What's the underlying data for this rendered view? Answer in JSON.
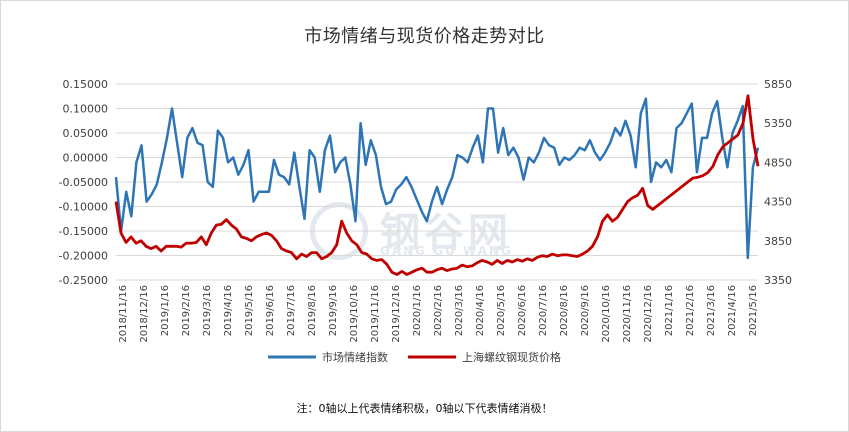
{
  "chart_data": {
    "type": "line",
    "title": "市场情绪与现货价格走势对比",
    "note": "注：0轴以上代表情绪积极，0轴以下代表情绪消极！",
    "watermark": {
      "cn": "钢谷网",
      "en": "GANG GU WANG"
    },
    "x_ticks": [
      "2018/11/16",
      "2018/12/16",
      "2019/1/16",
      "2019/2/16",
      "2019/3/16",
      "2019/4/16",
      "2019/5/16",
      "2019/6/16",
      "2019/7/16",
      "2019/8/16",
      "2019/9/16",
      "2019/10/16",
      "2019/11/16",
      "2019/12/16",
      "2020/1/16",
      "2020/2/16",
      "2020/3/16",
      "2020/4/16",
      "2020/5/16",
      "2020/6/16",
      "2020/7/16",
      "2020/8/16",
      "2020/9/16",
      "2020/10/16",
      "2020/11/16",
      "2020/12/16",
      "2021/1/16",
      "2021/2/16",
      "2021/3/16",
      "2021/4/16",
      "2021/5/16"
    ],
    "y_left": {
      "ticks": [
        "0.15000",
        "0.10000",
        "0.05000",
        "0.00000",
        "-0.05000",
        "-0.10000",
        "-0.15000",
        "-0.20000",
        "-0.25000"
      ],
      "min": -0.25,
      "max": 0.15
    },
    "y_right": {
      "ticks": [
        "5850",
        "5350",
        "4850",
        "4350",
        "3850",
        "3350"
      ],
      "min": 3350,
      "max": 5850
    },
    "legend_position": "bottom",
    "series": [
      {
        "name": "市场情绪指数",
        "axis": "left",
        "color": "#2e75b6",
        "values": [
          -0.04,
          -0.15,
          -0.07,
          -0.12,
          -0.01,
          0.025,
          -0.09,
          -0.075,
          -0.055,
          -0.01,
          0.04,
          0.1,
          0.03,
          -0.04,
          0.04,
          0.06,
          0.03,
          0.025,
          -0.05,
          -0.06,
          0.055,
          0.04,
          -0.01,
          0.0,
          -0.035,
          -0.015,
          0.015,
          -0.09,
          -0.07,
          -0.07,
          -0.07,
          -0.005,
          -0.035,
          -0.04,
          -0.055,
          0.01,
          -0.06,
          -0.125,
          0.015,
          0.0,
          -0.07,
          0.015,
          0.045,
          -0.03,
          -0.01,
          0.0,
          -0.055,
          -0.13,
          0.07,
          -0.015,
          0.035,
          0.005,
          -0.06,
          -0.095,
          -0.09,
          -0.065,
          -0.055,
          -0.04,
          -0.06,
          -0.085,
          -0.11,
          -0.13,
          -0.09,
          -0.06,
          -0.095,
          -0.065,
          -0.04,
          0.005,
          0.0,
          -0.01,
          0.02,
          0.045,
          -0.01,
          0.1,
          0.1,
          0.01,
          0.06,
          0.005,
          0.02,
          0.0,
          -0.045,
          0.0,
          -0.01,
          0.01,
          0.04,
          0.025,
          0.02,
          -0.015,
          0.0,
          -0.005,
          0.005,
          0.02,
          0.015,
          0.035,
          0.01,
          -0.005,
          0.01,
          0.03,
          0.06,
          0.045,
          0.075,
          0.045,
          -0.02,
          0.09,
          0.12,
          -0.05,
          -0.01,
          -0.02,
          -0.005,
          -0.03,
          0.06,
          0.07,
          0.09,
          0.11,
          -0.03,
          0.04,
          0.04,
          0.09,
          0.115,
          0.04,
          -0.02,
          0.05,
          0.075,
          0.105,
          -0.205,
          -0.02,
          0.02
        ]
      },
      {
        "name": "上海螺纹钢现货价格",
        "axis": "right",
        "color": "#c00000",
        "values": [
          4350,
          3950,
          3830,
          3900,
          3820,
          3850,
          3780,
          3750,
          3780,
          3720,
          3780,
          3780,
          3780,
          3770,
          3820,
          3820,
          3830,
          3900,
          3800,
          3950,
          4050,
          4060,
          4120,
          4050,
          4000,
          3900,
          3880,
          3850,
          3900,
          3930,
          3950,
          3920,
          3850,
          3750,
          3720,
          3700,
          3620,
          3680,
          3650,
          3700,
          3700,
          3620,
          3650,
          3700,
          3800,
          4100,
          3950,
          3850,
          3800,
          3700,
          3680,
          3620,
          3600,
          3610,
          3550,
          3450,
          3420,
          3460,
          3420,
          3450,
          3480,
          3500,
          3450,
          3450,
          3480,
          3500,
          3470,
          3490,
          3500,
          3540,
          3520,
          3530,
          3570,
          3600,
          3580,
          3550,
          3600,
          3560,
          3600,
          3580,
          3610,
          3590,
          3620,
          3600,
          3640,
          3660,
          3650,
          3680,
          3660,
          3670,
          3670,
          3660,
          3650,
          3680,
          3720,
          3780,
          3900,
          4100,
          4180,
          4100,
          4150,
          4250,
          4350,
          4400,
          4430,
          4520,
          4300,
          4250,
          4300,
          4350,
          4400,
          4450,
          4500,
          4550,
          4600,
          4650,
          4660,
          4680,
          4720,
          4800,
          4950,
          5050,
          5100,
          5150,
          5200,
          5350,
          5700,
          5150,
          4800
        ]
      }
    ]
  }
}
